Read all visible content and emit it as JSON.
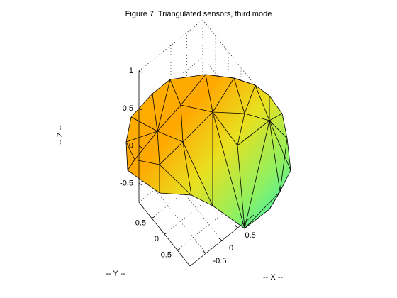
{
  "chart_data": {
    "type": "surface3d",
    "title": "Figure 7: Triangulated sensors, third mode",
    "xlabel": "-- X --",
    "ylabel": "-- Y --",
    "zlabel": "-- Z --",
    "xlim": [
      -1,
      1
    ],
    "ylim": [
      -1,
      1
    ],
    "zlim": [
      -0.75,
      1
    ],
    "xticks": [
      -0.5,
      0,
      0.5
    ],
    "yticks": [
      -0.5,
      0,
      0.5
    ],
    "zticks": [
      -0.5,
      0,
      0.5,
      1
    ],
    "grid": true
  }
}
